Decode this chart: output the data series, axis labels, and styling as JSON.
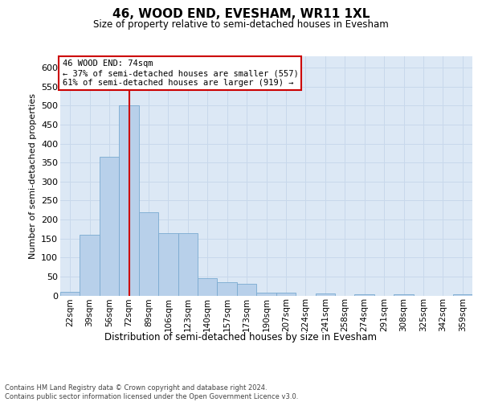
{
  "title": "46, WOOD END, EVESHAM, WR11 1XL",
  "subtitle": "Size of property relative to semi-detached houses in Evesham",
  "xlabel": "Distribution of semi-detached houses by size in Evesham",
  "ylabel": "Number of semi-detached properties",
  "categories": [
    "22sqm",
    "39sqm",
    "56sqm",
    "72sqm",
    "89sqm",
    "106sqm",
    "123sqm",
    "140sqm",
    "157sqm",
    "173sqm",
    "190sqm",
    "207sqm",
    "224sqm",
    "241sqm",
    "258sqm",
    "274sqm",
    "291sqm",
    "308sqm",
    "325sqm",
    "342sqm",
    "359sqm"
  ],
  "values": [
    10,
    160,
    365,
    500,
    220,
    165,
    165,
    45,
    35,
    30,
    8,
    7,
    0,
    5,
    0,
    4,
    0,
    4,
    0,
    0,
    4
  ],
  "bar_color": "#b8d0ea",
  "bar_edge_color": "#7aaad0",
  "grid_color": "#c8d8eb",
  "background_color": "#dce8f5",
  "red_line_x": 3,
  "red_line_color": "#cc0000",
  "annotation_line1": "46 WOOD END: 74sqm",
  "annotation_line2": "← 37% of semi-detached houses are smaller (557)",
  "annotation_line3": "61% of semi-detached houses are larger (919) →",
  "annotation_box_color": "#ffffff",
  "annotation_box_edge": "#cc0000",
  "footer_text": "Contains HM Land Registry data © Crown copyright and database right 2024.\nContains public sector information licensed under the Open Government Licence v3.0.",
  "ylim": [
    0,
    630
  ],
  "yticks": [
    0,
    50,
    100,
    150,
    200,
    250,
    300,
    350,
    400,
    450,
    500,
    550,
    600
  ]
}
